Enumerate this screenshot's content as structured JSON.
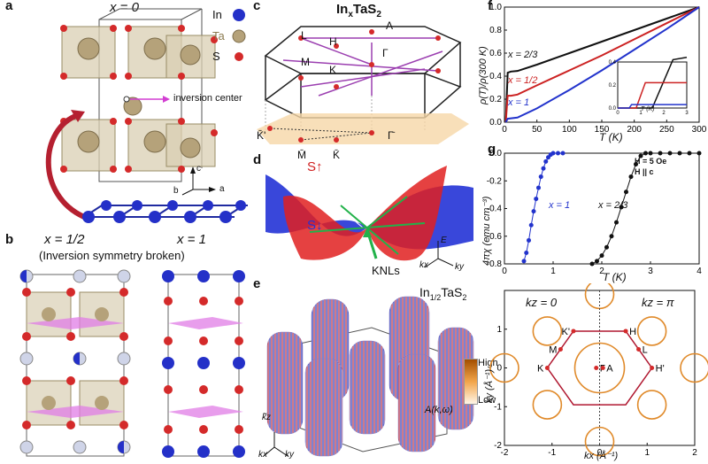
{
  "panels": {
    "a": {
      "label": "a",
      "title": "x = 0",
      "legend": [
        {
          "name": "In",
          "color": "#2430c8"
        },
        {
          "name": "Ta",
          "color": "#b5a27a"
        },
        {
          "name": "S",
          "color": "#d42a2a"
        }
      ],
      "annotation": "inversion center",
      "axes": [
        "c",
        "b",
        "a"
      ]
    },
    "b": {
      "label": "b",
      "titles": [
        "x = 1/2",
        "x = 1"
      ],
      "subtitle": "(Inversion symmetry broken)"
    },
    "c": {
      "label": "c",
      "title": "In",
      "title_sub": "x",
      "title_rest": "TaS",
      "title_sub2": "2",
      "points": [
        "A",
        "L",
        "H",
        "Γ",
        "M",
        "K"
      ],
      "projected": [
        "K̄'",
        "M̄",
        "K̄",
        "Γ̄"
      ]
    },
    "d": {
      "label": "d",
      "s_up": "S↑",
      "s_down": "S↓",
      "knl": "KNLs",
      "axes": [
        "E",
        "kx",
        "ky"
      ]
    },
    "e": {
      "label": "e",
      "title": "In",
      "title_sub": "1/2",
      "title_rest": "TaS",
      "title_sub2": "2",
      "colorbar_high": "High",
      "colorbar_low": "Low",
      "colorbar_label": "A(k,ω)",
      "axes": [
        "k̃z",
        "kx",
        "ky"
      ]
    },
    "f": {
      "label": "f",
      "ylabel": "ρ(T)/ρ(300 K)",
      "xlabel": "T (K)",
      "series_labels": [
        "x = 2/3",
        "x = 1/2",
        "x = 1"
      ],
      "inset_xlabel": "T (K)",
      "inset_ylabel": "ρ(T)/ρ(300 K)"
    },
    "g": {
      "label": "g",
      "ylabel": "4πχ (emu cm⁻³)",
      "xlabel": "T (K)",
      "note1": "H = 5 Oe",
      "note2": "H || c",
      "series_labels": [
        "x = 1",
        "x = 2/3"
      ]
    },
    "h": {
      "kz0": "kz = 0",
      "kzpi": "kz = π",
      "points": [
        "K'",
        "H",
        "M",
        "L",
        "K",
        "Γ",
        "A",
        "H'"
      ],
      "ylabel": "ky (Å⁻¹)",
      "xlabel": "kx (Å⁻¹)"
    }
  },
  "chart_data": [
    {
      "type": "line",
      "panel": "f",
      "xlabel": "T (K)",
      "ylabel": "ρ(T)/ρ(300 K)",
      "xlim": [
        0,
        300
      ],
      "ylim": [
        0,
        1.0
      ],
      "xticks": [
        0,
        50,
        100,
        150,
        200,
        250,
        300
      ],
      "yticks": [
        0.0,
        0.2,
        0.4,
        0.6,
        0.8,
        1.0
      ],
      "series": [
        {
          "name": "x = 2/3",
          "color": "#111111",
          "x": [
            2,
            5,
            10,
            20,
            50,
            100,
            150,
            200,
            250,
            300
          ],
          "y": [
            0.0,
            0.43,
            0.44,
            0.445,
            0.5,
            0.6,
            0.7,
            0.8,
            0.9,
            1.0
          ]
        },
        {
          "name": "x = 1/2",
          "color": "#cc2222",
          "x": [
            2,
            5,
            10,
            20,
            50,
            100,
            150,
            200,
            250,
            300
          ],
          "y": [
            0.0,
            0.23,
            0.23,
            0.24,
            0.32,
            0.45,
            0.58,
            0.72,
            0.86,
            1.0
          ]
        },
        {
          "name": "x = 1",
          "color": "#2233cc",
          "x": [
            2,
            5,
            20,
            50,
            100,
            150,
            200,
            250,
            300
          ],
          "y": [
            0.0,
            0.03,
            0.04,
            0.12,
            0.28,
            0.45,
            0.63,
            0.81,
            1.0
          ]
        }
      ],
      "inset": {
        "xlabel": "T (K)",
        "xlim": [
          0,
          3
        ],
        "ylim": [
          0,
          0.4
        ],
        "xticks": [
          0,
          1,
          2,
          3
        ],
        "yticks": [
          0.0,
          0.2,
          0.4
        ],
        "series": [
          {
            "name": "x = 2/3",
            "color": "#111111",
            "x": [
              0,
              1.5,
              2.4,
              3
            ],
            "y": [
              0,
              0,
              0.42,
              0.44
            ]
          },
          {
            "name": "x = 1/2",
            "color": "#cc2222",
            "x": [
              0,
              0.8,
              1.2,
              3
            ],
            "y": [
              0,
              0,
              0.22,
              0.22
            ]
          },
          {
            "name": "x = 1",
            "color": "#2233cc",
            "x": [
              0,
              0.5,
              0.6,
              3
            ],
            "y": [
              0,
              0,
              0.03,
              0.03
            ]
          }
        ]
      }
    },
    {
      "type": "scatter",
      "panel": "g",
      "xlabel": "T (K)",
      "ylabel": "4πχ (emu cm⁻³)",
      "xlim": [
        0,
        4
      ],
      "ylim": [
        -0.8,
        0.0
      ],
      "xticks": [
        0,
        1,
        2,
        3,
        4
      ],
      "yticks": [
        0.0,
        -0.2,
        -0.4,
        -0.6,
        -0.8
      ],
      "series": [
        {
          "name": "x = 1",
          "color": "#2233cc",
          "x": [
            0.4,
            0.45,
            0.5,
            0.55,
            0.6,
            0.65,
            0.7,
            0.75,
            0.8,
            0.85,
            0.9,
            0.95,
            1.0,
            1.1,
            1.2
          ],
          "y": [
            -0.78,
            -0.72,
            -0.63,
            -0.52,
            -0.42,
            -0.33,
            -0.25,
            -0.17,
            -0.11,
            -0.06,
            -0.03,
            -0.01,
            0.0,
            0.0,
            0.0
          ]
        },
        {
          "name": "x = 2/3",
          "color": "#111111",
          "x": [
            1.8,
            1.9,
            2.0,
            2.1,
            2.2,
            2.3,
            2.4,
            2.5,
            2.6,
            2.7,
            2.8,
            2.9,
            3.0,
            3.2,
            3.4,
            3.6,
            3.8,
            4.0
          ],
          "y": [
            -0.8,
            -0.78,
            -0.74,
            -0.68,
            -0.6,
            -0.5,
            -0.39,
            -0.28,
            -0.17,
            -0.08,
            -0.02,
            0.0,
            0.0,
            0.0,
            0.0,
            0.0,
            0.0,
            0.0
          ]
        }
      ]
    },
    {
      "type": "heatmap",
      "panel": "h",
      "xlabel": "kx (Å⁻¹)",
      "ylabel": "ky (Å⁻¹)",
      "xlim": [
        -2,
        2
      ],
      "ylim": [
        -2,
        2
      ],
      "xticks": [
        -2,
        -1,
        0,
        1,
        2
      ],
      "yticks": [
        -2,
        -1,
        0,
        1
      ],
      "points": [
        {
          "name": "K'",
          "x": -0.55,
          "y": 0.95
        },
        {
          "name": "H",
          "x": 0.55,
          "y": 0.95
        },
        {
          "name": "M",
          "x": -0.82,
          "y": 0.48
        },
        {
          "name": "L",
          "x": 0.82,
          "y": 0.48
        },
        {
          "name": "K",
          "x": -1.1,
          "y": 0.0
        },
        {
          "name": "Γ",
          "x": -0.07,
          "y": 0.0
        },
        {
          "name": "A",
          "x": 0.07,
          "y": 0.0
        },
        {
          "name": "H'",
          "x": 1.1,
          "y": 0.0
        }
      ]
    }
  ]
}
